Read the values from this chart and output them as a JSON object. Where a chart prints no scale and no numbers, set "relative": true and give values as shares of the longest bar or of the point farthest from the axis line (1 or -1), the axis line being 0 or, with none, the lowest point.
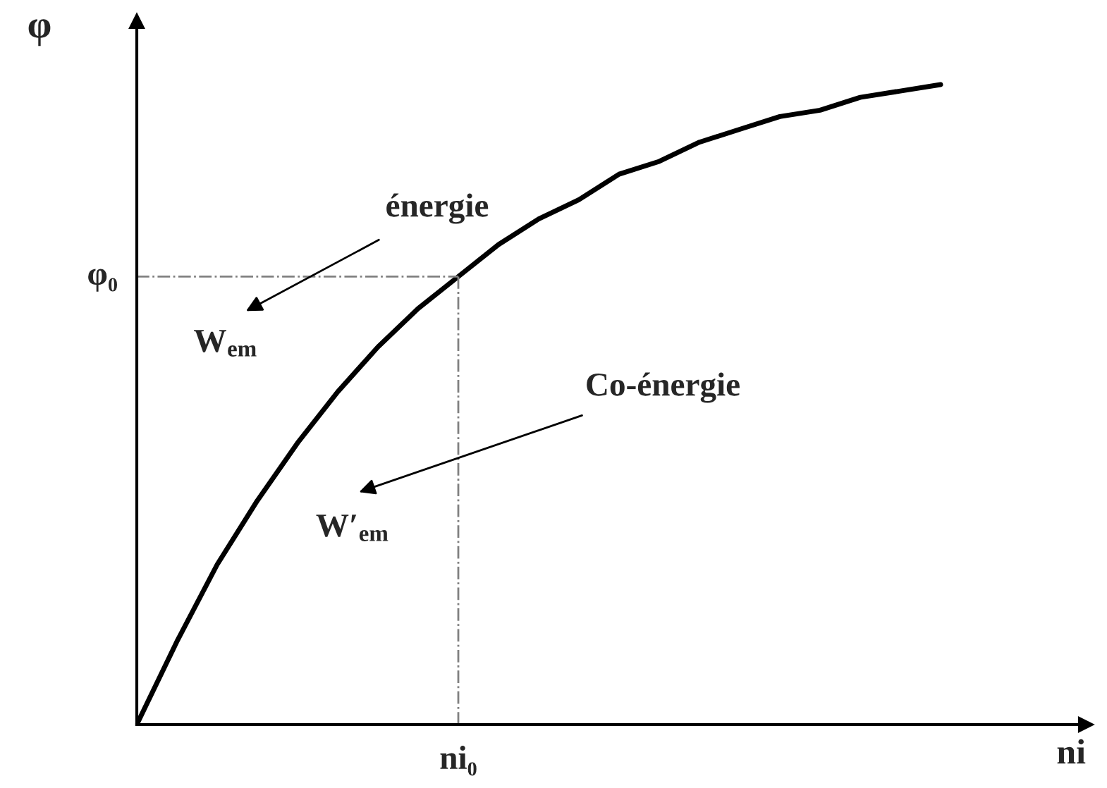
{
  "chart_data": {
    "type": "line",
    "relative": true,
    "xlabel": "ni",
    "ylabel": "φ",
    "categories": [
      null,
      null,
      null,
      null,
      null,
      null,
      null,
      null,
      null,
      null,
      null,
      null,
      null,
      null,
      null,
      null,
      null,
      null,
      null,
      null,
      null
    ],
    "series": [
      {
        "color": "#000000",
        "values": [
          0,
          0.13,
          0.25,
          0.35,
          0.44,
          0.52,
          0.59,
          0.65,
          0.7,
          0.75,
          0.79,
          0.82,
          0.86,
          0.88,
          0.91,
          0.93,
          0.95,
          0.96,
          0.98,
          0.99,
          1.0
        ]
      }
    ],
    "ref_lines": [
      {
        "axis": "y",
        "value": 0.7,
        "label": "φ₀",
        "color": "#808080",
        "line_style": "dashdot"
      }
    ],
    "annotations": [
      "énergie",
      "W$_{em}$",
      "Co-énergie",
      "W′$_{em}$",
      "ni₀"
    ],
    "legend": false
  }
}
